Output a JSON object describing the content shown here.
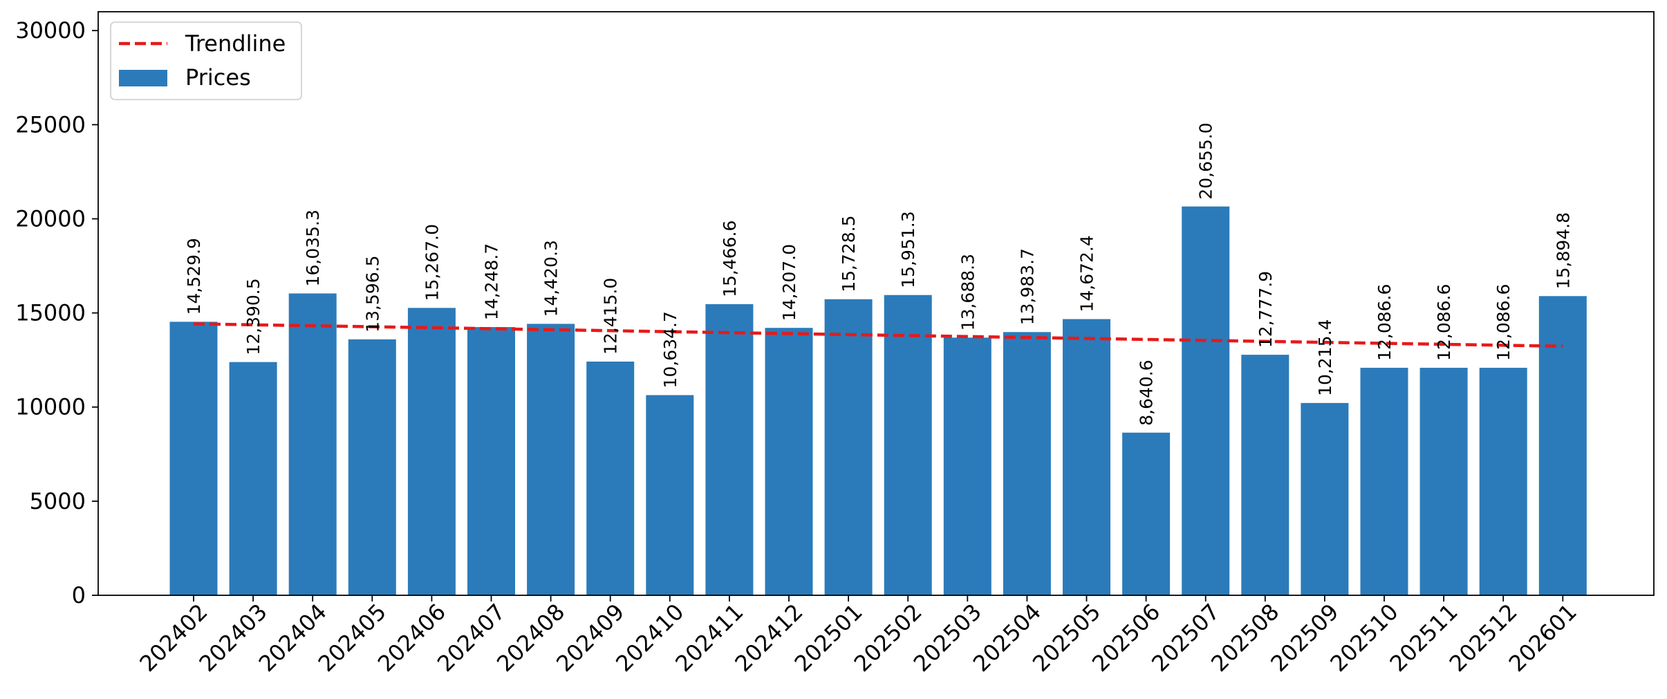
{
  "chart_data": {
    "type": "bar",
    "title": "",
    "xlabel": "",
    "ylabel": "",
    "ylim": [
      0,
      31000
    ],
    "yticks": [
      0,
      5000,
      10000,
      15000,
      20000,
      25000,
      30000
    ],
    "grid": false,
    "legend_position": "top-left",
    "categories": [
      "202402",
      "202403",
      "202404",
      "202405",
      "202406",
      "202407",
      "202408",
      "202409",
      "202410",
      "202411",
      "202412",
      "202501",
      "202502",
      "202503",
      "202504",
      "202505",
      "202506",
      "202507",
      "202508",
      "202509",
      "202510",
      "202511",
      "202512",
      "202601"
    ],
    "series": [
      {
        "name": "Prices",
        "kind": "bar",
        "color": "#2b7bba",
        "values": [
          14529.9,
          12390.5,
          16035.3,
          13596.5,
          15267.0,
          14248.7,
          14420.3,
          12415.0,
          10634.7,
          15466.6,
          14207.0,
          15728.5,
          15951.3,
          13688.3,
          13983.7,
          14672.4,
          8640.6,
          20655.0,
          12777.9,
          10215.4,
          12086.6,
          12086.6,
          12086.6,
          15894.8
        ],
        "labels": [
          "14,529.9",
          "12,390.5",
          "16,035.3",
          "13,596.5",
          "15,267.0",
          "14,248.7",
          "14,420.3",
          "12,415.0",
          "10,634.7",
          "15,466.6",
          "14,207.0",
          "15,728.5",
          "15,951.3",
          "13,688.3",
          "13,983.7",
          "14,672.4",
          "8,640.6",
          "20,655.0",
          "12,777.9",
          "10,215.4",
          "12,086.6",
          "12,086.6",
          "12,086.6",
          "15,894.8"
        ]
      },
      {
        "name": "Trendline",
        "kind": "line",
        "style": "dashed",
        "color": "#e8191a",
        "start": 14420,
        "end": 13230
      }
    ],
    "legend": [
      {
        "name": "Trendline",
        "kind": "line"
      },
      {
        "name": "Prices",
        "kind": "bar"
      }
    ]
  }
}
